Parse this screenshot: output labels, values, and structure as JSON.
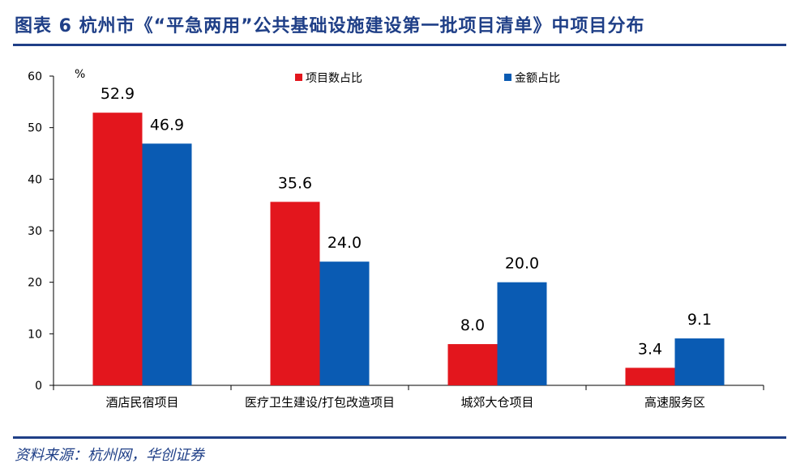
{
  "title": "图表 6  杭州市《“平急两用”公共基础设施建设第一批项目清单》中项目分布",
  "source": "资料来源：杭州网，华创证券",
  "chart_data": {
    "type": "bar",
    "unit": "%",
    "categories": [
      "酒店民宿项目",
      "医疗卫生建设/打包改造项目",
      "城郊大仓项目",
      "高速服务区"
    ],
    "series": [
      {
        "name": "项目数占比",
        "color": "#e3161d",
        "values": [
          52.9,
          35.6,
          8.0,
          3.4
        ],
        "labels": [
          "52.9",
          "35.6",
          "8.0",
          "3.4"
        ]
      },
      {
        "name": "金额占比",
        "color": "#0a5bb3",
        "values": [
          46.9,
          24.0,
          20.0,
          9.1
        ],
        "labels": [
          "46.9",
          "24.0",
          "20.0",
          "9.1"
        ]
      }
    ],
    "ylim": [
      0,
      60
    ],
    "yticks": [
      0,
      10,
      20,
      30,
      40,
      50,
      60
    ],
    "legend_position": "top-center",
    "grid": false
  }
}
